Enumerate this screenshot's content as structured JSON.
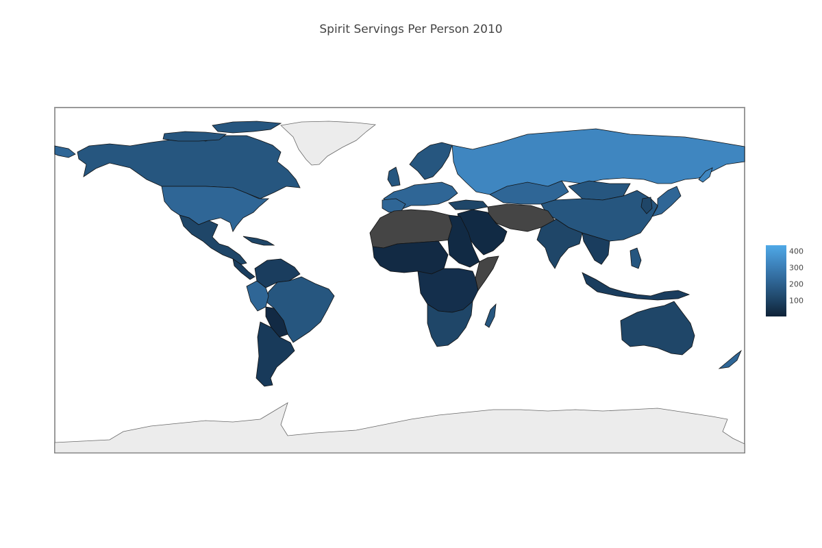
{
  "title": "Spirit Servings Per Person 2010",
  "colorbar": {
    "ticks": [
      "400",
      "300",
      "200",
      "100"
    ],
    "colors": [
      "#4fa9e7",
      "#3f86c0",
      "#2f6696",
      "#1f4668",
      "#0e2237"
    ]
  },
  "map": {
    "projection": "equirectangular",
    "frame_color": "#999999",
    "no_data_color": "#454545",
    "antarctica_greenland_color": "#ececec"
  }
}
